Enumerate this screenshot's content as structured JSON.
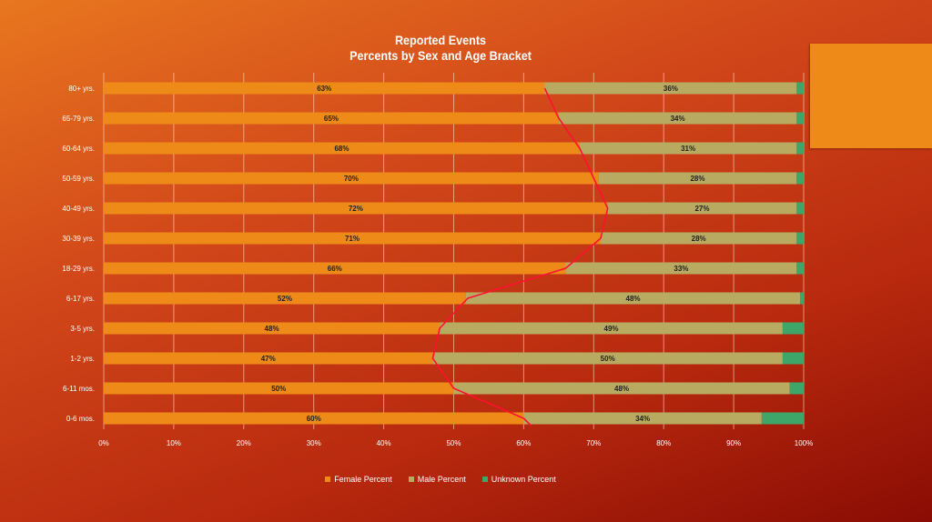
{
  "chart_data": {
    "type": "bar",
    "orientation": "horizontal",
    "stacked": "100%",
    "title": "Reported Events",
    "subtitle": "Percents by Sex and Age Bracket",
    "categories": [
      "80+ yrs.",
      "65-79 yrs.",
      "60-64 yrs.",
      "50-59 yrs.",
      "40-49 yrs.",
      "30-39 yrs.",
      "18-29 yrs.",
      "6-17 yrs.",
      "3-5 yrs.",
      "1-2 yrs.",
      "6-11 mos.",
      "0-6 mos."
    ],
    "series": [
      {
        "name": "Female Percent",
        "color": "#ee8a17",
        "values": [
          63,
          65,
          68,
          70,
          72,
          71,
          66,
          52,
          48,
          47,
          50,
          60
        ]
      },
      {
        "name": "Male Percent",
        "color": "#b9aa62",
        "values": [
          36,
          34,
          31,
          28,
          27,
          28,
          33,
          48,
          49,
          50,
          48,
          34
        ]
      },
      {
        "name": "Unknown Percent",
        "color": "#3fa66a",
        "values": [
          1,
          1,
          1,
          1,
          1,
          1,
          1,
          0.5,
          3,
          3,
          2,
          6
        ]
      }
    ],
    "xlim": [
      0,
      100
    ],
    "xticks": [
      "0%",
      "10%",
      "20%",
      "30%",
      "40%",
      "50%",
      "60%",
      "70%",
      "80%",
      "90%",
      "100%"
    ],
    "grid": true,
    "legend": "bottom",
    "annotation": "hand-drawn red curve tracing female percent boundary",
    "annotation_color": "#ff1030"
  }
}
